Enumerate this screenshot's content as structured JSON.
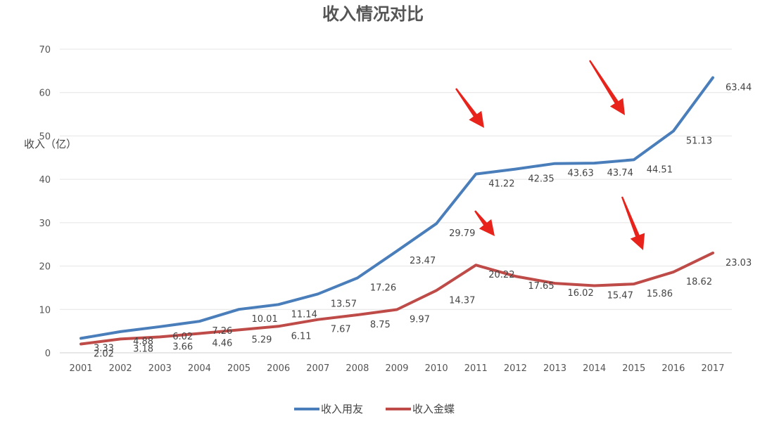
{
  "chart_data": {
    "type": "line",
    "title": "收入情况对比",
    "ylabel": "收入（亿）",
    "xlabel": "",
    "ylim": [
      0,
      70
    ],
    "yticks": [
      0,
      10,
      20,
      30,
      40,
      50,
      60,
      70
    ],
    "grid": true,
    "legend_position": "bottom",
    "categories": [
      "2001",
      "2002",
      "2003",
      "2004",
      "2005",
      "2006",
      "2007",
      "2008",
      "2009",
      "2010",
      "2011",
      "2012",
      "2013",
      "2014",
      "2015",
      "2016",
      "2017"
    ],
    "series": [
      {
        "name": "收入用友",
        "color": "#4a7ebb",
        "values": [
          3.33,
          4.88,
          6.02,
          7.26,
          10.01,
          11.14,
          13.57,
          17.26,
          23.47,
          29.79,
          41.22,
          42.35,
          43.63,
          43.74,
          44.51,
          51.13,
          63.44
        ],
        "labels": [
          "3.33",
          "4.88",
          "6.02",
          "7.26",
          "10.01",
          "11.14",
          "13.57",
          "17.26",
          "23.47",
          "29.79",
          "41.22",
          "42.35",
          "43.63",
          "43.74",
          "44.51",
          "51.13",
          "63.44"
        ]
      },
      {
        "name": "收入金蝶",
        "color": "#be4b48",
        "values": [
          2.02,
          3.18,
          3.66,
          4.46,
          5.29,
          6.11,
          7.67,
          8.75,
          9.97,
          14.37,
          20.22,
          17.65,
          16.02,
          15.47,
          15.86,
          18.62,
          23.03
        ],
        "labels": [
          "2.02",
          "3.18",
          "3.66",
          "4.46",
          "5.29",
          "6.11",
          "7.67",
          "8.75",
          "9.97",
          "14.37",
          "20.22",
          "17.65",
          "16.02",
          "15.47",
          "15.86",
          "18.62",
          "23.03"
        ]
      }
    ],
    "annotations": [
      {
        "type": "arrow",
        "color": "#e8231b",
        "points_to_category": "2011",
        "series": "收入用友"
      },
      {
        "type": "arrow",
        "color": "#e8231b",
        "points_to_category": "2014",
        "series": "收入用友"
      },
      {
        "type": "arrow",
        "color": "#e8231b",
        "points_to_category": "2011",
        "series": "收入金蝶"
      },
      {
        "type": "arrow",
        "color": "#e8231b",
        "points_to_category": "2015",
        "series": "收入金蝶"
      }
    ]
  }
}
